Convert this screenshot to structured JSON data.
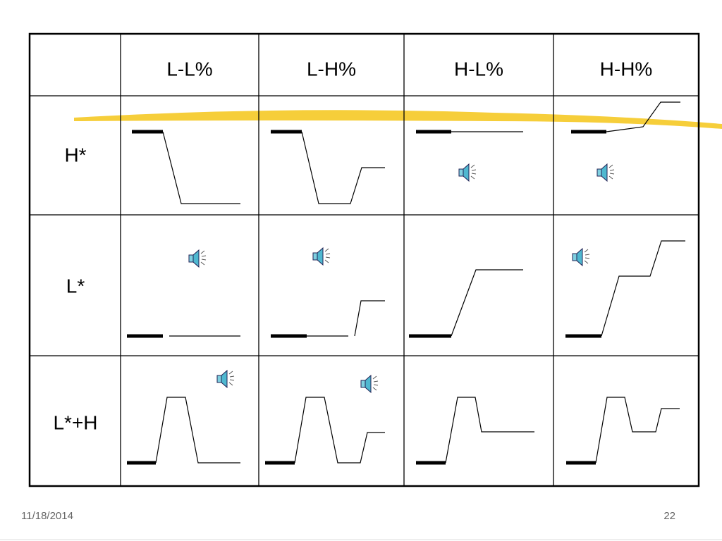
{
  "table": {
    "header": [
      "L-L%",
      "L-H%",
      "H-L%",
      "H-H%"
    ],
    "rows": [
      "H*",
      "L*",
      "L*+H"
    ]
  },
  "footer": {
    "date": "11/18/2014",
    "page": "22"
  }
}
